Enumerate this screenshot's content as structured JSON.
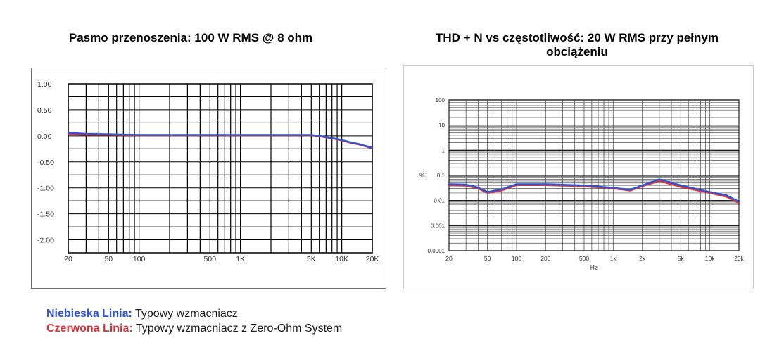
{
  "legend": {
    "blue_name": "Niebieska Linia:",
    "blue_desc": "Typowy wzmacniacz",
    "red_name": "Czerwona Linia:",
    "red_desc": "Typowy wzmacniacz z Zero-Ohm System",
    "blue_color": "#2f55d4",
    "red_color": "#d8323a"
  },
  "chart_data": [
    {
      "type": "line",
      "title": "Pasmo przenoszenia: 100 W RMS @ 8 ohm",
      "xlabel": "",
      "ylabel": "",
      "xscale": "log",
      "xlim": [
        20,
        20000
      ],
      "ylim": [
        -2.25,
        1.0
      ],
      "x_ticks": [
        {
          "value": 20,
          "label": "20"
        },
        {
          "value": 50,
          "label": "50"
        },
        {
          "value": 100,
          "label": "100"
        },
        {
          "value": 500,
          "label": "500"
        },
        {
          "value": 1000,
          "label": "1K"
        },
        {
          "value": 5000,
          "label": "5K"
        },
        {
          "value": 10000,
          "label": "10K"
        },
        {
          "value": 20000,
          "label": "20K"
        }
      ],
      "y_ticks": [
        {
          "value": 1.0,
          "label": "1.00"
        },
        {
          "value": 0.5,
          "label": "0.50"
        },
        {
          "value": 0.0,
          "label": "0.00"
        },
        {
          "value": -0.5,
          "label": "-0.50"
        },
        {
          "value": -1.0,
          "label": "-1.00"
        },
        {
          "value": -1.5,
          "label": "-1.50"
        },
        {
          "value": -2.0,
          "label": "-2.00"
        }
      ],
      "grid": true,
      "series": [
        {
          "color": "#2f55d4",
          "x": [
            20,
            30,
            50,
            100,
            200,
            500,
            1000,
            2000,
            5000,
            6000,
            8000,
            10000,
            12000,
            15000,
            20000
          ],
          "y": [
            0.06,
            0.04,
            0.03,
            0.02,
            0.02,
            0.02,
            0.02,
            0.02,
            0.02,
            0.0,
            -0.04,
            -0.08,
            -0.12,
            -0.16,
            -0.23
          ]
        },
        {
          "color": "#d8323a",
          "x": [
            20,
            30,
            50,
            100,
            200,
            500,
            1000,
            2000,
            5000,
            6000,
            8000,
            10000,
            12000,
            15000,
            20000
          ],
          "y": [
            0.03,
            0.02,
            0.02,
            0.01,
            0.01,
            0.01,
            0.01,
            0.01,
            0.01,
            -0.01,
            -0.05,
            -0.09,
            -0.13,
            -0.17,
            -0.24
          ]
        }
      ]
    },
    {
      "type": "line",
      "title": "THD + N vs częstotliwość: 20 W RMS przy pełnym obciążeniu",
      "xlabel": "Hz",
      "ylabel": "%",
      "xscale": "log",
      "yscale": "log",
      "xlim": [
        20,
        20000
      ],
      "ylim": [
        0.0001,
        100
      ],
      "x_ticks": [
        {
          "value": 20,
          "label": "20"
        },
        {
          "value": 50,
          "label": "50"
        },
        {
          "value": 100,
          "label": "100"
        },
        {
          "value": 200,
          "label": "200"
        },
        {
          "value": 500,
          "label": "500"
        },
        {
          "value": 1000,
          "label": "1k"
        },
        {
          "value": 2000,
          "label": "2k"
        },
        {
          "value": 5000,
          "label": "5k"
        },
        {
          "value": 10000,
          "label": "10k"
        },
        {
          "value": 20000,
          "label": "20k"
        }
      ],
      "y_ticks": [
        {
          "value": 100,
          "label": "100"
        },
        {
          "value": 10,
          "label": "10"
        },
        {
          "value": 1,
          "label": "1"
        },
        {
          "value": 0.1,
          "label": "0.1"
        },
        {
          "value": 0.01,
          "label": "0.01"
        },
        {
          "value": 0.001,
          "label": "0.001"
        },
        {
          "value": 0.0001,
          "label": "0.0001"
        }
      ],
      "grid": true,
      "series": [
        {
          "color": "#2f55d4",
          "x": [
            20,
            30,
            40,
            50,
            70,
            100,
            200,
            500,
            1000,
            1500,
            2000,
            3000,
            5000,
            10000,
            15000,
            20000
          ],
          "y": [
            0.045,
            0.043,
            0.033,
            0.022,
            0.028,
            0.045,
            0.045,
            0.04,
            0.032,
            0.027,
            0.04,
            0.07,
            0.04,
            0.022,
            0.016,
            0.009
          ]
        },
        {
          "color": "#d8323a",
          "x": [
            20,
            30,
            40,
            50,
            70,
            100,
            200,
            500,
            1000,
            1500,
            2000,
            3000,
            5000,
            10000,
            15000,
            20000
          ],
          "y": [
            0.04,
            0.039,
            0.03,
            0.02,
            0.025,
            0.041,
            0.041,
            0.037,
            0.03,
            0.025,
            0.037,
            0.06,
            0.035,
            0.02,
            0.014,
            0.008
          ]
        }
      ]
    }
  ]
}
